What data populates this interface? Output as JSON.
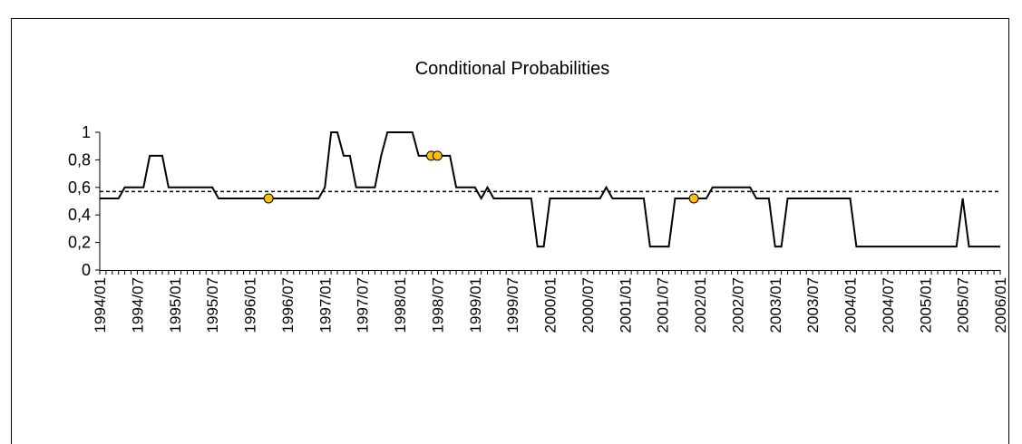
{
  "chart_data": {
    "type": "line",
    "title": "Conditional Probabilities",
    "categories": [
      "1994/01",
      null,
      null,
      null,
      null,
      null,
      "1994/07",
      null,
      null,
      null,
      null,
      null,
      "1995/01",
      null,
      null,
      null,
      null,
      null,
      "1995/07",
      null,
      null,
      null,
      null,
      null,
      "1996/01",
      null,
      null,
      null,
      null,
      null,
      "1996/07",
      null,
      null,
      null,
      null,
      null,
      "1997/01",
      null,
      null,
      null,
      null,
      null,
      "1997/07",
      null,
      null,
      null,
      null,
      null,
      "1998/01",
      null,
      null,
      null,
      null,
      null,
      "1998/07",
      null,
      null,
      null,
      null,
      null,
      "1999/01",
      null,
      null,
      null,
      null,
      null,
      "1999/07",
      null,
      null,
      null,
      null,
      null,
      "2000/01",
      null,
      null,
      null,
      null,
      null,
      "2000/07",
      null,
      null,
      null,
      null,
      null,
      "2001/01",
      null,
      null,
      null,
      null,
      null,
      "2001/07",
      null,
      null,
      null,
      null,
      null,
      "2002/01",
      null,
      null,
      null,
      null,
      null,
      "2002/07",
      null,
      null,
      null,
      null,
      null,
      "2003/01",
      null,
      null,
      null,
      null,
      null,
      "2003/07",
      null,
      null,
      null,
      null,
      null,
      "2004/01",
      null,
      null,
      null,
      null,
      null,
      "2004/07",
      null,
      null,
      null,
      null,
      null,
      "2005/01",
      null,
      null,
      null,
      null,
      null,
      "2005/07",
      null,
      null,
      null,
      null,
      null,
      "2006/01"
    ],
    "series": [
      {
        "color": "#000000",
        "values": [
          0.52,
          0.52,
          0.52,
          0.52,
          0.6,
          0.6,
          0.6,
          0.6,
          0.83,
          0.83,
          0.83,
          0.6,
          0.6,
          0.6,
          0.6,
          0.6,
          0.6,
          0.6,
          0.6,
          0.52,
          0.52,
          0.52,
          0.52,
          0.52,
          0.52,
          0.52,
          0.52,
          0.52,
          0.52,
          0.52,
          0.52,
          0.52,
          0.52,
          0.52,
          0.52,
          0.52,
          0.6,
          1,
          1,
          0.83,
          0.83,
          0.6,
          0.6,
          0.6,
          0.6,
          0.83,
          1,
          1,
          1,
          1,
          1,
          0.83,
          0.83,
          0.83,
          0.83,
          0.83,
          0.83,
          0.6,
          0.6,
          0.6,
          0.6,
          0.52,
          0.6,
          0.52,
          0.52,
          0.52,
          0.52,
          0.52,
          0.52,
          0.52,
          0.17,
          0.17,
          0.52,
          0.52,
          0.52,
          0.52,
          0.52,
          0.52,
          0.52,
          0.52,
          0.52,
          0.6,
          0.52,
          0.52,
          0.52,
          0.52,
          0.52,
          0.52,
          0.17,
          0.17,
          0.17,
          0.17,
          0.52,
          0.52,
          0.52,
          0.52,
          0.52,
          0.52,
          0.6,
          0.6,
          0.6,
          0.6,
          0.6,
          0.6,
          0.6,
          0.52,
          0.52,
          0.52,
          0.17,
          0.17,
          0.52,
          0.52,
          0.52,
          0.52,
          0.52,
          0.52,
          0.52,
          0.52,
          0.52,
          0.52,
          0.52,
          0.17,
          0.17,
          0.17,
          0.17,
          0.17,
          0.17,
          0.17,
          0.17,
          0.17,
          0.17,
          0.17,
          0.17,
          0.17,
          0.17,
          0.17,
          0.17,
          0.17,
          0.52,
          0.17,
          0.17,
          0.17,
          0.17,
          0.17,
          0.17
        ]
      },
      {
        "color": "#ffc000",
        "marker": true,
        "values": [
          null,
          null,
          null,
          null,
          null,
          null,
          null,
          null,
          null,
          null,
          null,
          null,
          null,
          null,
          null,
          null,
          null,
          null,
          null,
          null,
          null,
          null,
          null,
          null,
          null,
          null,
          null,
          0.52,
          null,
          null,
          null,
          null,
          null,
          null,
          null,
          null,
          null,
          null,
          null,
          null,
          null,
          null,
          null,
          null,
          null,
          null,
          null,
          null,
          null,
          null,
          null,
          null,
          null,
          0.83,
          0.83,
          null,
          null,
          null,
          null,
          null,
          null,
          null,
          null,
          null,
          null,
          null,
          null,
          null,
          null,
          null,
          null,
          null,
          null,
          null,
          null,
          null,
          null,
          null,
          null,
          null,
          null,
          null,
          null,
          null,
          null,
          null,
          null,
          null,
          null,
          null,
          null,
          null,
          null,
          null,
          null,
          0.52,
          null,
          null,
          null,
          null,
          null,
          null,
          null,
          null,
          null,
          null,
          null,
          null,
          null,
          null,
          null,
          null,
          null,
          null,
          null,
          null,
          null,
          null,
          null,
          null,
          null,
          null,
          null,
          null,
          null,
          null,
          null,
          null,
          null,
          null,
          null,
          null,
          null,
          null,
          null,
          null,
          null,
          null,
          null,
          null,
          null,
          null,
          null,
          null,
          null
        ]
      }
    ],
    "reference_line": 0.57,
    "ylim": [
      0,
      1
    ],
    "yticks": [
      {
        "value": 0,
        "label": "0"
      },
      {
        "value": 0.2,
        "label": "0,2"
      },
      {
        "value": 0.4,
        "label": "0,4"
      },
      {
        "value": 0.6,
        "label": "0,6"
      },
      {
        "value": 0.8,
        "label": "0,8"
      },
      {
        "value": 1,
        "label": "1"
      }
    ],
    "grid": false
  }
}
